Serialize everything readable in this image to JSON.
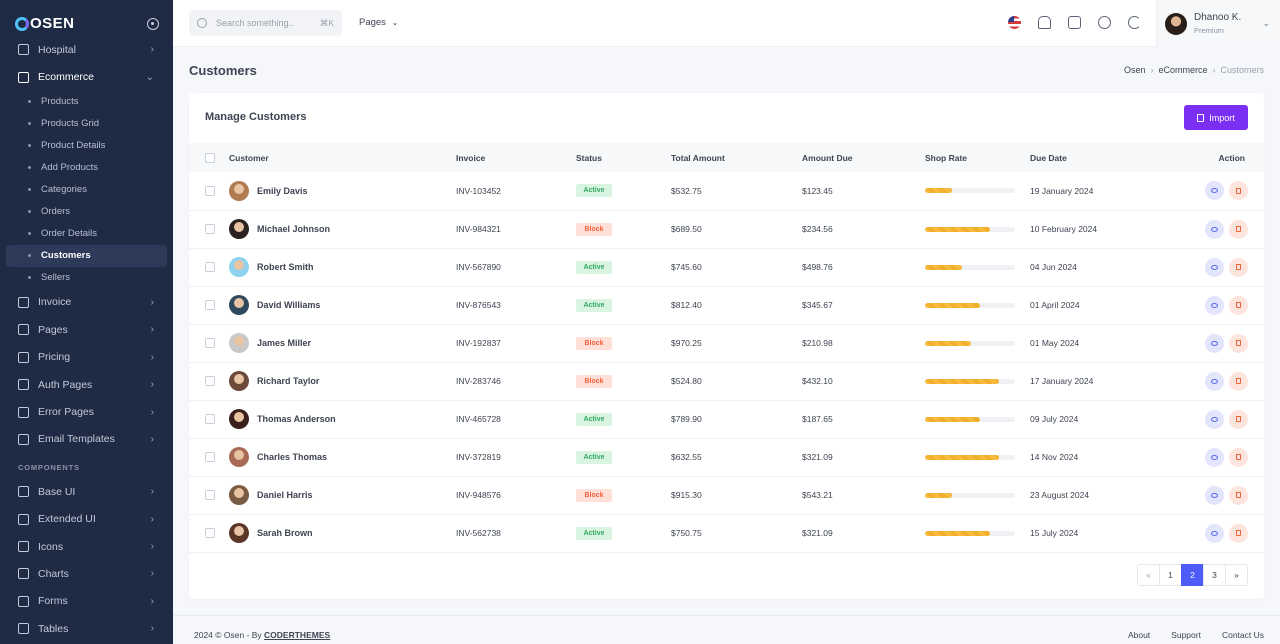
{
  "brand": {
    "name": "OSEN"
  },
  "sidebar": {
    "top_items": [
      {
        "label": "Hospital",
        "icon": "hospital-icon"
      }
    ],
    "ecommerce": {
      "label": "Ecommerce",
      "icon": "basket-icon"
    },
    "sub_items": [
      {
        "label": "Products",
        "active": false
      },
      {
        "label": "Products Grid",
        "active": false
      },
      {
        "label": "Product Details",
        "active": false
      },
      {
        "label": "Add Products",
        "active": false
      },
      {
        "label": "Categories",
        "active": false
      },
      {
        "label": "Orders",
        "active": false
      },
      {
        "label": "Order Details",
        "active": false
      },
      {
        "label": "Customers",
        "active": true
      },
      {
        "label": "Sellers",
        "active": false
      }
    ],
    "items": [
      {
        "label": "Invoice",
        "icon": "invoice-icon"
      },
      {
        "label": "Pages",
        "icon": "pages-icon"
      },
      {
        "label": "Pricing",
        "icon": "pricing-icon"
      },
      {
        "label": "Auth Pages",
        "icon": "lock-icon"
      },
      {
        "label": "Error Pages",
        "icon": "error-icon"
      },
      {
        "label": "Email Templates",
        "icon": "mail-icon"
      }
    ],
    "section_label": "COMPONENTS",
    "component_items": [
      {
        "label": "Base UI",
        "icon": "base-ui-icon"
      },
      {
        "label": "Extended UI",
        "icon": "extended-ui-icon"
      },
      {
        "label": "Icons",
        "icon": "leaf-icon"
      },
      {
        "label": "Charts",
        "icon": "chart-icon"
      },
      {
        "label": "Forms",
        "icon": "form-icon"
      },
      {
        "label": "Tables",
        "icon": "table-icon"
      }
    ]
  },
  "topbar": {
    "search_placeholder": "Search something..",
    "search_shortcut": "⌘K",
    "pages_label": "Pages",
    "user": {
      "name": "Dhanoo K.",
      "role": "Premium"
    }
  },
  "page": {
    "title": "Customers",
    "breadcrumb": [
      "Osen",
      "eCommerce",
      "Customers"
    ]
  },
  "card": {
    "title": "Manage Customers",
    "import_label": "Import"
  },
  "table": {
    "headers": [
      "Customer",
      "Invoice",
      "Status",
      "Total Amount",
      "Amount Due",
      "Shop Rate",
      "Due Date",
      "Action"
    ],
    "rows": [
      {
        "name": "Emily Davis",
        "invoice": "INV-103452",
        "status": "Active",
        "total": "$532.75",
        "due": "$123.45",
        "rate": 0.3,
        "date": "19 January 2024",
        "avatar": "#b07a52"
      },
      {
        "name": "Michael Johnson",
        "invoice": "INV-984321",
        "status": "Block",
        "total": "$689.50",
        "due": "$234.56",
        "rate": 0.72,
        "date": "10 February 2024",
        "avatar": "#2b2220"
      },
      {
        "name": "Robert Smith",
        "invoice": "INV-567890",
        "status": "Active",
        "total": "$745.60",
        "due": "$498.76",
        "rate": 0.41,
        "date": "04 Jun 2024",
        "avatar": "#8fd3ef"
      },
      {
        "name": "David Williams",
        "invoice": "INV-876543",
        "status": "Active",
        "total": "$812.40",
        "due": "$345.67",
        "rate": 0.61,
        "date": "01 April 2024",
        "avatar": "#2f4a5e"
      },
      {
        "name": "James Miller",
        "invoice": "INV-192837",
        "status": "Block",
        "total": "$970.25",
        "due": "$210.98",
        "rate": 0.51,
        "date": "01 May 2024",
        "avatar": "#c9c9c9"
      },
      {
        "name": "Richard Taylor",
        "invoice": "INV-283746",
        "status": "Block",
        "total": "$524.80",
        "due": "$432.10",
        "rate": 0.82,
        "date": "17 January 2024",
        "avatar": "#6b4a3c"
      },
      {
        "name": "Thomas Anderson",
        "invoice": "INV-465728",
        "status": "Active",
        "total": "$789.90",
        "due": "$187.65",
        "rate": 0.61,
        "date": "09 July 2024",
        "avatar": "#3a1f1a"
      },
      {
        "name": "Charles Thomas",
        "invoice": "INV-372819",
        "status": "Active",
        "total": "$632.55",
        "due": "$321.09",
        "rate": 0.82,
        "date": "14 Nov 2024",
        "avatar": "#a86a55"
      },
      {
        "name": "Daniel Harris",
        "invoice": "INV-948576",
        "status": "Block",
        "total": "$915.30",
        "due": "$543.21",
        "rate": 0.3,
        "date": "23 August 2024",
        "avatar": "#7a5a40"
      },
      {
        "name": "Sarah Brown",
        "invoice": "INV-562738",
        "status": "Active",
        "total": "$750.75",
        "due": "$321.09",
        "rate": 0.72,
        "date": "15 July 2024",
        "avatar": "#5a3626"
      }
    ]
  },
  "pagination": {
    "prev": "«",
    "pages": [
      "1",
      "2",
      "3"
    ],
    "current": "2",
    "next": "»"
  },
  "footer": {
    "copyright": "2024 © Osen - By ",
    "company": "CODERTHEMES",
    "links": [
      "About",
      "Support",
      "Contact Us"
    ]
  }
}
